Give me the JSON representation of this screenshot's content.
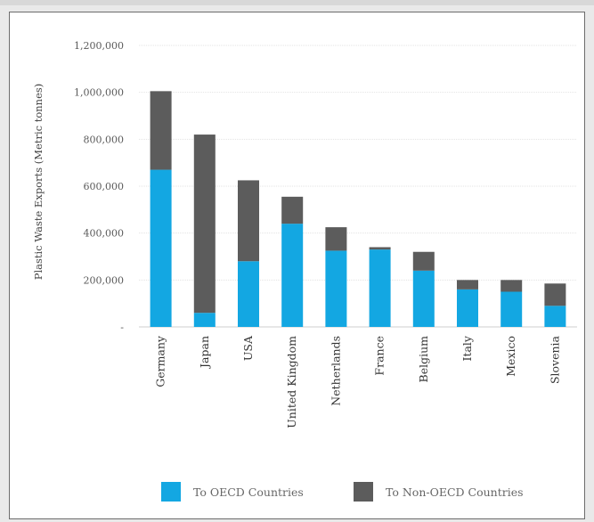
{
  "chart_data": {
    "type": "bar",
    "stacked": true,
    "ylabel": "Plastic Waste Exports (Metric tonnes)",
    "ylim": [
      0,
      1200000
    ],
    "yticks": [
      0,
      200000,
      400000,
      600000,
      800000,
      1000000,
      1200000
    ],
    "ytick_labels": [
      "-",
      "200,000",
      "400,000",
      "600,000",
      "800,000",
      "1,000,000",
      "1,200,000"
    ],
    "categories": [
      "Germany",
      "Japan",
      "USA",
      "United Kingdom",
      "Netherlands",
      "France",
      "Belgium",
      "Italy",
      "Mexico",
      "Slovenia"
    ],
    "series": [
      {
        "name": "To OECD Countries",
        "color": "#13a7e2",
        "values": [
          670000,
          60000,
          280000,
          440000,
          325000,
          330000,
          240000,
          160000,
          150000,
          90000
        ]
      },
      {
        "name": "To Non-OECD Countries",
        "color": "#5c5c5c",
        "values": [
          335000,
          760000,
          345000,
          115000,
          100000,
          10000,
          80000,
          40000,
          50000,
          95000
        ]
      }
    ],
    "grid": true,
    "legend_position": "bottom"
  }
}
